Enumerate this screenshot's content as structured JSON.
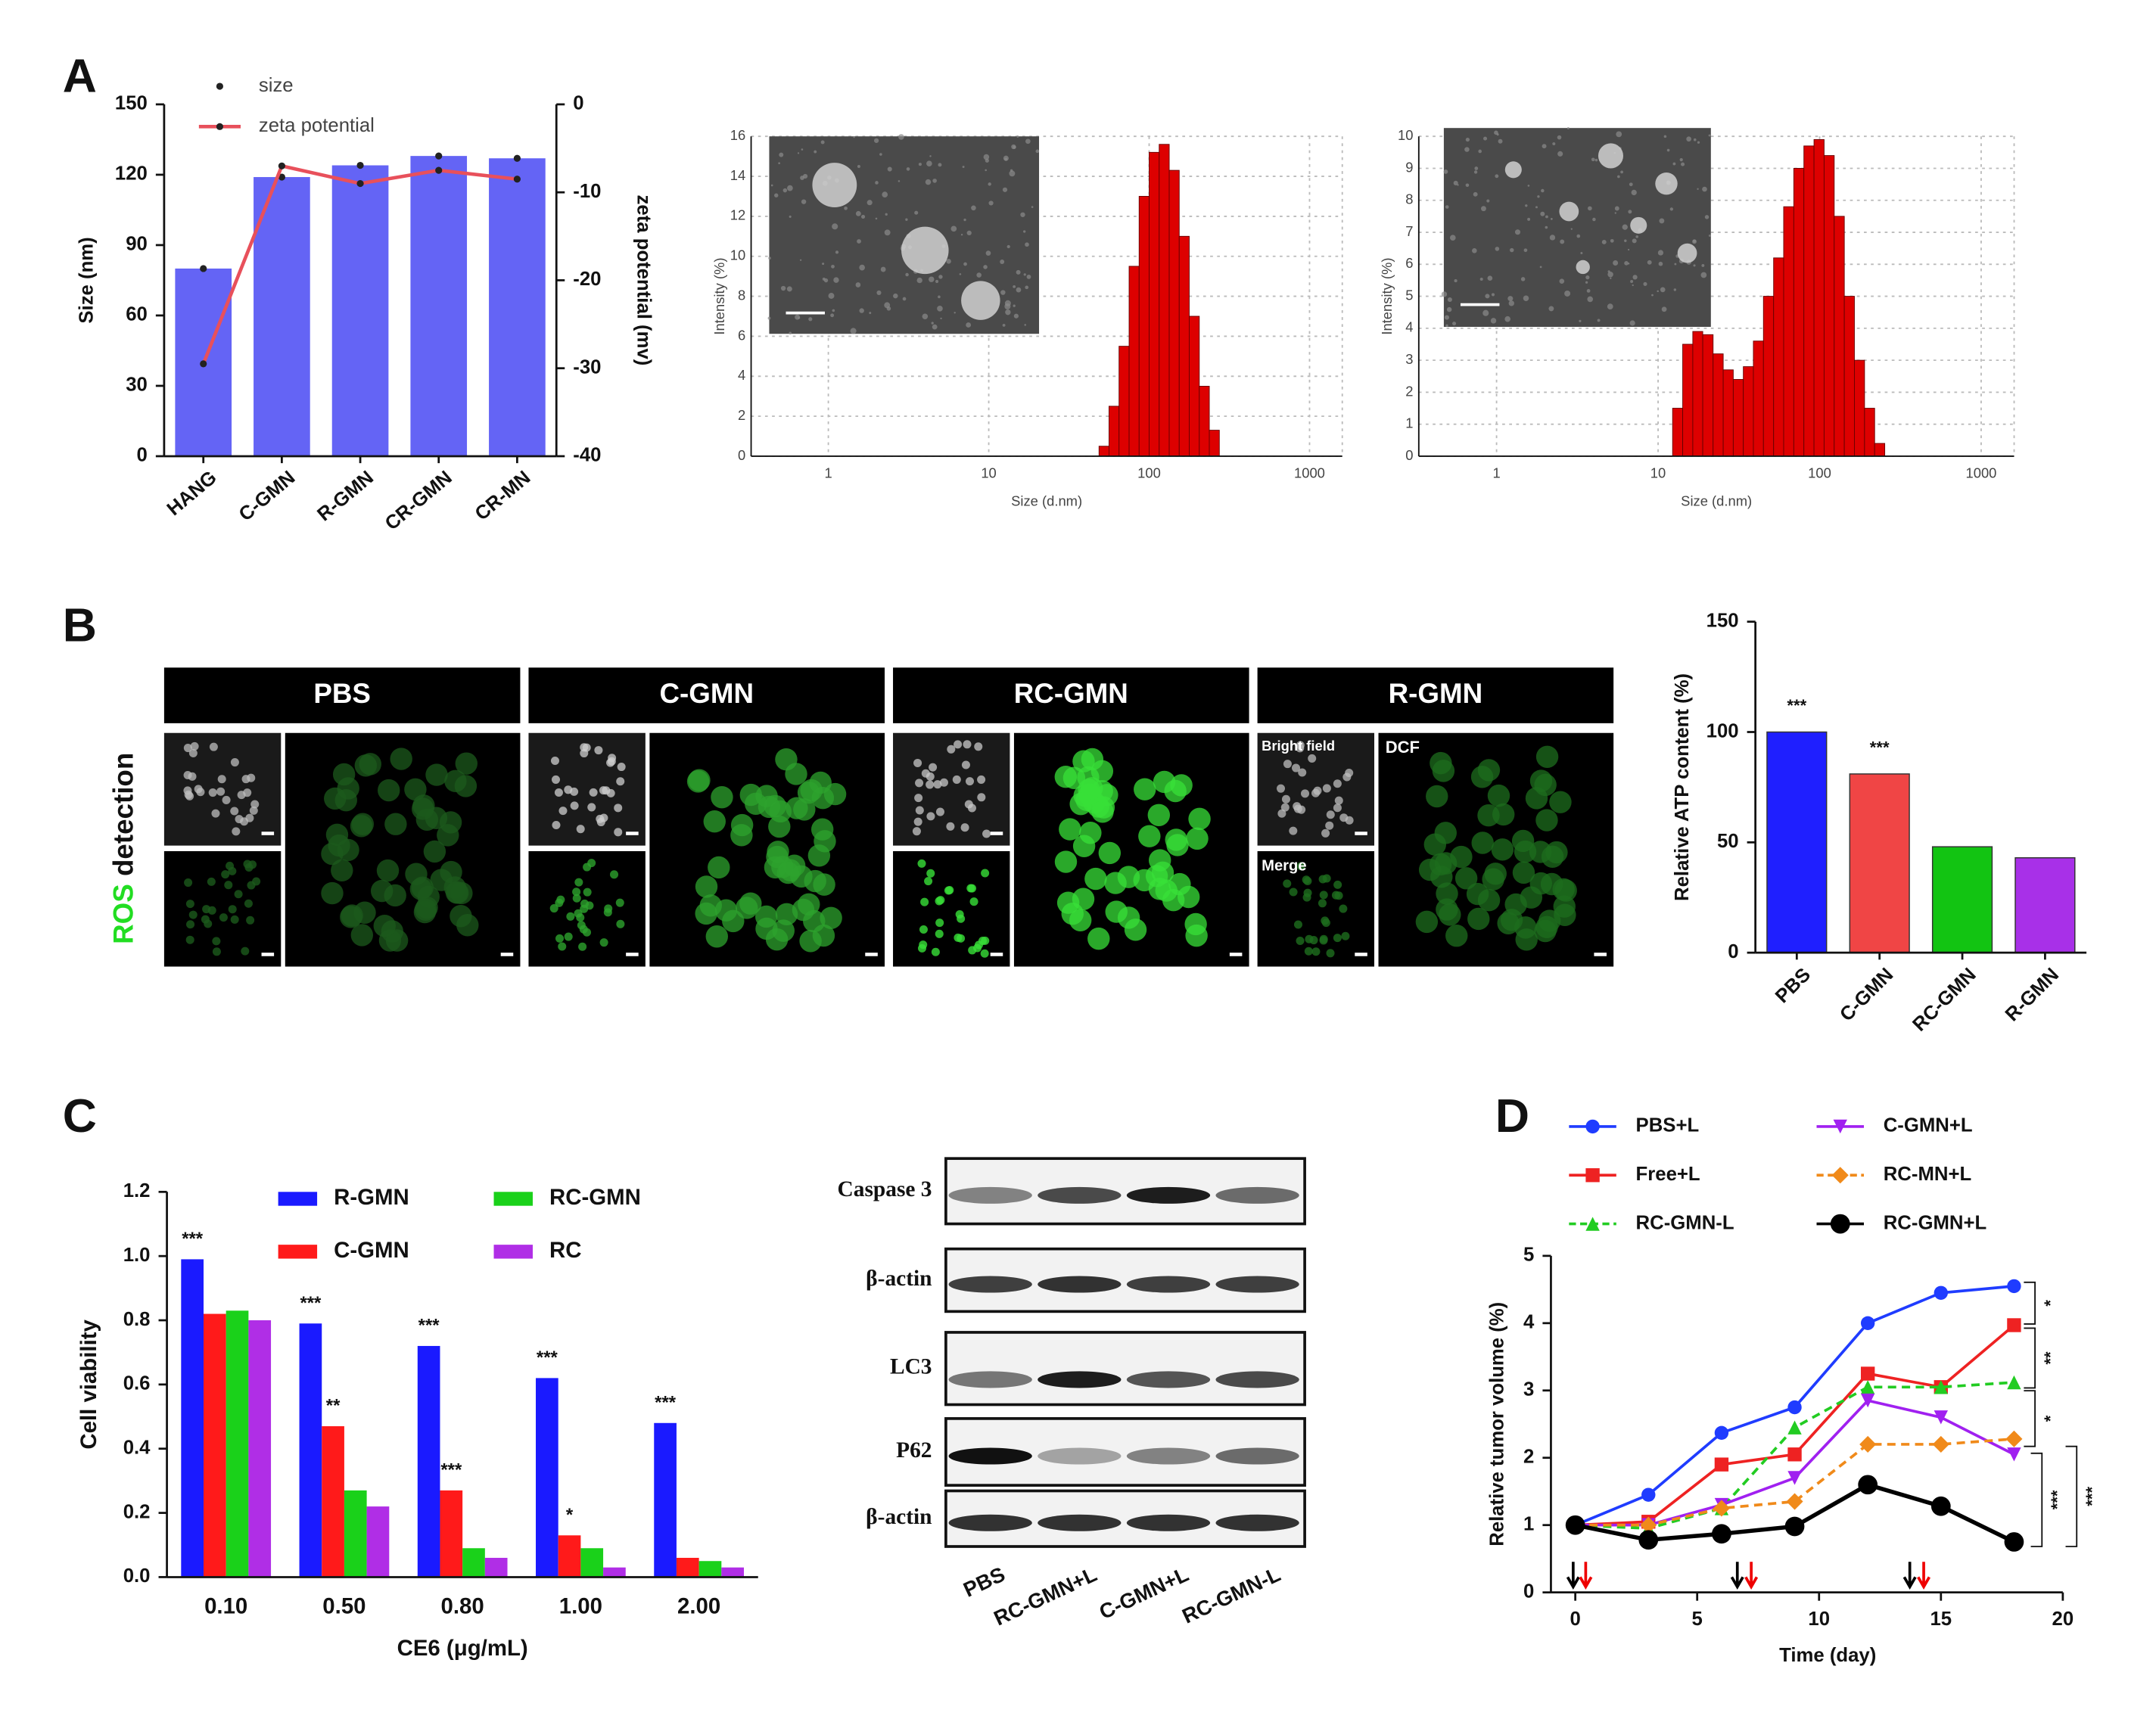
{
  "panels": [
    "A",
    "B",
    "C",
    "D"
  ],
  "chart_data": [
    {
      "type": "combo",
      "categories": [
        "HANG",
        "C-GMN",
        "R-GMN",
        "CR-GMN",
        "CR-MN"
      ],
      "series": [
        {
          "name": "size",
          "color": "#6464f5",
          "values": [
            80,
            119,
            124,
            128,
            127
          ]
        },
        {
          "name": "zeta potential",
          "color": "#e8505b",
          "axis": "y2",
          "values": [
            -29.5,
            -7,
            -9,
            -7.5,
            -8.5
          ]
        }
      ],
      "ylabel": "Size (nm)",
      "y2label": "zeta potential (mv)",
      "ylim": [
        0,
        150
      ],
      "yticks": [
        0,
        30,
        60,
        90,
        120,
        150
      ],
      "y2lim": [
        -40,
        0
      ],
      "y2ticks": [
        -40,
        -30,
        -20,
        -10,
        0
      ]
    },
    {
      "type": "histogram",
      "xscale": "log",
      "grid": true,
      "color": "#dd0000",
      "bins": [
        48.7,
        56.2,
        64.9,
        75.0,
        86.6,
        100,
        115.5,
        133.4,
        154.0,
        177.8,
        205.4,
        237.2,
        273.9
      ],
      "values": [
        0.5,
        2.5,
        5.5,
        9.5,
        13,
        15.2,
        15.6,
        14.3,
        11,
        7,
        3.5,
        1.3
      ],
      "xlim": [
        0.33,
        1600
      ],
      "xticks": [
        1,
        10,
        100,
        1000
      ],
      "ylim": [
        0,
        16
      ],
      "yticks": [
        0,
        2,
        4,
        6,
        8,
        10,
        12,
        14,
        16
      ],
      "xlabel": "Size (d.nm)",
      "ylabel": "Intensity (%)"
    },
    {
      "type": "histogram",
      "xscale": "log",
      "grid": true,
      "color": "#dd0000",
      "bins": [
        12.3,
        14.2,
        16.4,
        18.9,
        21.9,
        25.3,
        29.2,
        33.7,
        38.9,
        44.9,
        51.9,
        59.9,
        69.2,
        79.9,
        92.3,
        106.6,
        123.1,
        142.2,
        164.2,
        189.7,
        219.1,
        253.1
      ],
      "values": [
        1.5,
        3.5,
        3.9,
        3.8,
        3.2,
        2.7,
        2.4,
        2.8,
        3.6,
        5,
        6.2,
        7.8,
        9,
        9.7,
        9.9,
        9.4,
        7.5,
        5,
        3,
        1.5,
        0.4
      ],
      "xlim": [
        0.33,
        1600
      ],
      "xticks": [
        1,
        10,
        100,
        1000
      ],
      "ylim": [
        0,
        10
      ],
      "yticks": [
        0,
        1,
        2,
        3,
        4,
        5,
        6,
        7,
        8,
        9,
        10
      ],
      "xlabel": "Size (d.nm)",
      "ylabel": "Intensity (%)"
    },
    {
      "type": "bar",
      "categories": [
        "PBS",
        "C-GMN",
        "RC-GMN",
        "R-GMN"
      ],
      "values": [
        100,
        81,
        48,
        43
      ],
      "colors": [
        "#1f1fff",
        "#f04545",
        "#12c412",
        "#a830e8"
      ],
      "annotations": [
        "***",
        "***",
        null,
        null
      ],
      "ylabel": "Relative ATP content (%)",
      "ylim": [
        0,
        150
      ],
      "yticks": [
        0,
        50,
        100,
        150
      ]
    },
    {
      "type": "grouped_bar",
      "categories": [
        "0.10",
        "0.50",
        "0.80",
        "1.00",
        "2.00"
      ],
      "series": [
        {
          "name": "R-GMN",
          "color": "#1a1aff",
          "values": [
            0.99,
            0.79,
            0.72,
            0.62,
            0.48
          ],
          "annotations": [
            "***",
            "***",
            "***",
            "***",
            "***"
          ]
        },
        {
          "name": "C-GMN",
          "color": "#ff1a1a",
          "values": [
            0.82,
            0.47,
            0.27,
            0.13,
            0.06
          ],
          "annotations": [
            null,
            "**",
            "***",
            "*",
            null
          ]
        },
        {
          "name": "RC-GMN",
          "color": "#1ad11a",
          "values": [
            0.83,
            0.27,
            0.09,
            0.09,
            0.05
          ]
        },
        {
          "name": "RC",
          "color": "#b02ee6",
          "values": [
            0.8,
            0.22,
            0.06,
            0.03,
            0.03
          ]
        }
      ],
      "xlabel": "CE6 (μg/mL)",
      "ylabel": "Cell viability",
      "ylim": [
        0,
        1.2
      ],
      "yticks": [
        {
          "value": 0,
          "label": "0.0"
        },
        0.2,
        0.4,
        0.6,
        0.8,
        {
          "value": 1,
          "label": "1.0"
        },
        1.2
      ]
    },
    {
      "type": "line",
      "x": [
        0,
        3,
        6,
        9,
        12,
        15,
        18
      ],
      "series": [
        {
          "name": "PBS+L",
          "color": "#1f3cff",
          "marker": "circle",
          "values": [
            1,
            1.45,
            2.37,
            2.75,
            4.0,
            4.45,
            4.55
          ]
        },
        {
          "name": "Free+L",
          "color": "#ee2222",
          "marker": "square",
          "values": [
            1,
            1.05,
            1.9,
            2.05,
            3.25,
            3.05,
            3.97
          ]
        },
        {
          "name": "RC-GMN-L",
          "color": "#22cc22",
          "marker": "triangle",
          "dash": true,
          "values": [
            1,
            0.95,
            1.25,
            2.45,
            3.05,
            3.05,
            3.12
          ]
        },
        {
          "name": "C-GMN+L",
          "color": "#a020f0",
          "marker": "down",
          "values": [
            1,
            1.0,
            1.3,
            1.7,
            2.85,
            2.6,
            2.05
          ]
        },
        {
          "name": "RC-MN+L",
          "color": "#f08a1a",
          "marker": "diamond",
          "dash": true,
          "values": [
            1,
            1.0,
            1.25,
            1.35,
            2.2,
            2.2,
            2.28
          ]
        },
        {
          "name": "RC-GMN+L",
          "color": "#000000",
          "marker": "big",
          "values": [
            1,
            0.78,
            0.87,
            0.98,
            1.6,
            1.28,
            0.75
          ]
        }
      ],
      "xlabel": "Time (day)",
      "ylabel": "Relative tumor volume (%)",
      "xlim": [
        -1,
        20
      ],
      "xticks": [
        0,
        5,
        10,
        15,
        20
      ],
      "ylim": [
        0,
        5
      ],
      "yticks": [
        0,
        1,
        2,
        3,
        4,
        5
      ],
      "annotations": [
        "*",
        "**",
        "*",
        "***",
        "***"
      ]
    }
  ],
  "panel_b": {
    "columns": [
      "PBS",
      "C-GMN",
      "RC-GMN",
      "R-GMN"
    ],
    "image_labels": [
      "Bright field",
      "Merge",
      "DCF"
    ],
    "side_label": [
      "ROS",
      "detection"
    ]
  },
  "western_blot": {
    "rows": [
      "Caspase 3",
      "β-actin",
      "LC3",
      "P62",
      "β-actin"
    ],
    "lanes": [
      "PBS",
      "RC-GMN+L",
      "C-GMN+L",
      "RC-GMN-L"
    ]
  }
}
